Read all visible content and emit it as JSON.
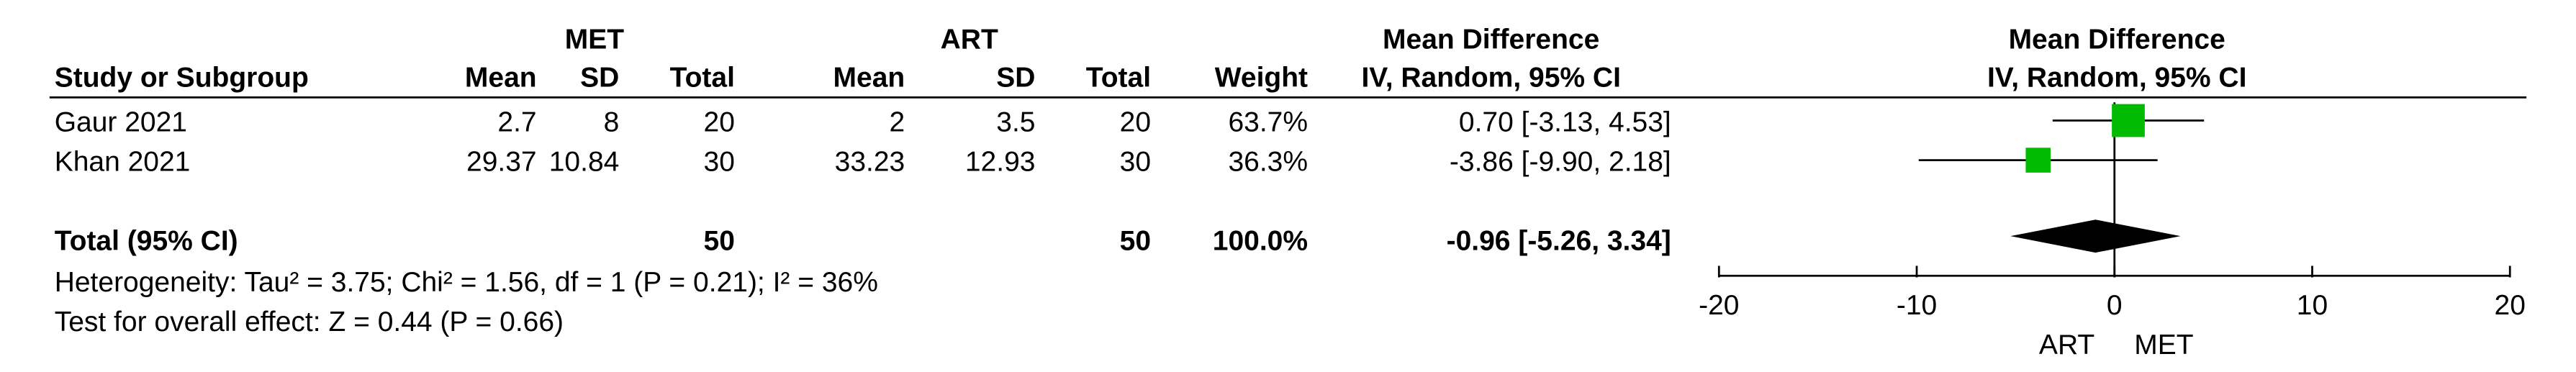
{
  "chart_data": {
    "type": "forest",
    "group_headers": [
      "MET",
      "ART"
    ],
    "effect_header": "Mean Difference",
    "effect_subheader": "IV, Random, 95% CI",
    "plot_header": "Mean Difference",
    "plot_subheader": "IV, Random, 95% CI",
    "columns": [
      "Study or Subgroup",
      "Mean",
      "SD",
      "Total",
      "Mean",
      "SD",
      "Total",
      "Weight"
    ],
    "color": "#00bb00",
    "studies": [
      {
        "name": "Gaur 2021",
        "met_mean": 2.7,
        "met_sd": 8,
        "met_total": 20,
        "art_mean": 2,
        "art_sd": 3.5,
        "art_total": 20,
        "weight": 63.7,
        "weight_label": "63.7%",
        "md": 0.7,
        "ci": [
          -3.13,
          4.53
        ],
        "estimate_label": "0.70 [-3.13, 4.53]"
      },
      {
        "name": "Khan 2021",
        "met_mean": 29.37,
        "met_sd": 10.84,
        "met_total": 30,
        "art_mean": 33.23,
        "art_sd": 12.93,
        "art_total": 30,
        "weight": 36.3,
        "weight_label": "36.3%",
        "md": -3.86,
        "ci": [
          -9.9,
          2.18
        ],
        "estimate_label": "-3.86 [-9.90, 2.18]"
      }
    ],
    "total": {
      "name": "Total (95% CI)",
      "met_total": 50,
      "art_total": 50,
      "weight": 100,
      "weight_label": "100.0%",
      "md": -0.96,
      "ci": [
        -5.26,
        3.34
      ],
      "estimate_label": "-0.96 [-5.26, 3.34]",
      "color": "#000000"
    },
    "heterogeneity": "Heterogeneity: Tau² = 3.75; Chi² = 1.56, df = 1 (P = 0.21); I² = 36%",
    "overall_effect": "Test for overall effect: Z = 0.44 (P = 0.66)",
    "xlim": [
      -20,
      20
    ],
    "xticks": [
      -20,
      -10,
      0,
      10,
      20
    ],
    "x_left_label": "ART",
    "x_right_label": "MET"
  }
}
